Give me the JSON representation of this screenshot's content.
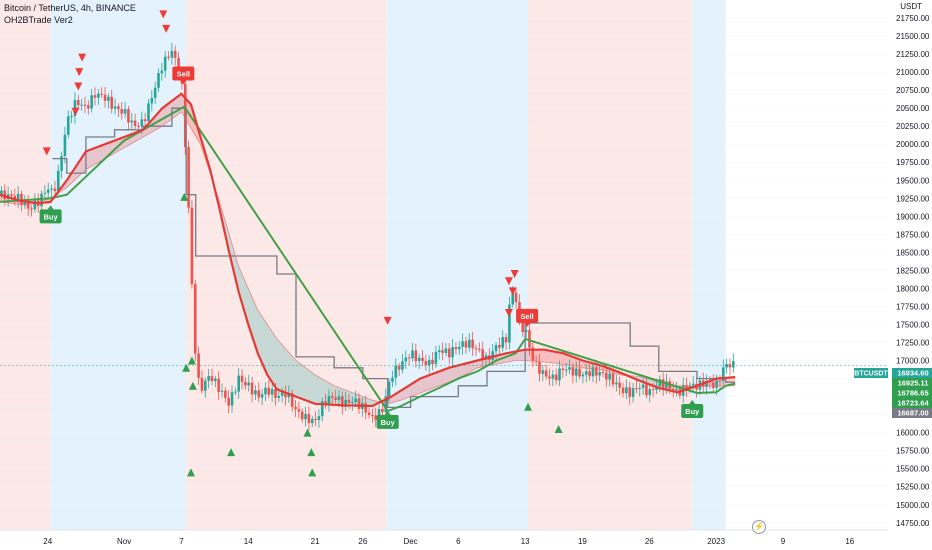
{
  "header": {
    "symbol_line": "Bitcoin / TetherUS, 4h, BINANCE",
    "indicator_line": "OH2BTrade Ver2"
  },
  "axis": {
    "unit": "USDT"
  },
  "icons": {
    "bottom_right": "lightning-icon"
  },
  "colors": {
    "bull_zone": "#e3f2fd",
    "bear_zone": "#fde8e8",
    "up_candle": "#26a69a",
    "down_candle": "#ef5350",
    "buy_label": "#2e9e4f",
    "sell_label": "#ef3b36",
    "up_arrow": "#2e9e4f",
    "down_arrow": "#ef3b36",
    "step_line": "#787b86",
    "fast_ma": "#e53935",
    "slow_ma_green": "#43a047"
  },
  "price_tags": [
    {
      "label": "BTCUSDT",
      "value": "16934.60",
      "color": "#26a69a"
    },
    {
      "label": "",
      "value": "16925.11",
      "color": "#2e9e4f"
    },
    {
      "label": "",
      "value": "16786.65",
      "color": "#2e9e4f"
    },
    {
      "label": "",
      "value": "16723.64",
      "color": "#2e9e4f"
    },
    {
      "label": "",
      "value": "16687.00",
      "color": "#787b86"
    }
  ],
  "chart_data": {
    "type": "candlestick",
    "y_ticks": [
      14750,
      15000,
      15250,
      15500,
      15750,
      16000,
      16250,
      16500,
      16750,
      17000,
      17250,
      17500,
      17750,
      18000,
      18250,
      18500,
      18750,
      19000,
      19250,
      19500,
      19750,
      20000,
      20250,
      20500,
      20750,
      21000,
      21250,
      21500,
      21750
    ],
    "ylim": [
      14650,
      22000
    ],
    "x_ticks": [
      {
        "label": "24",
        "x": 24
      },
      {
        "label": "Nov",
        "x": 32
      },
      {
        "label": "7",
        "x": 38
      },
      {
        "label": "14",
        "x": 45
      },
      {
        "label": "21",
        "x": 52
      },
      {
        "label": "26",
        "x": 57
      },
      {
        "label": "Dec",
        "x": 62
      },
      {
        "label": "6",
        "x": 67
      },
      {
        "label": "13",
        "x": 74
      },
      {
        "label": "19",
        "x": 80
      },
      {
        "label": "26",
        "x": 87
      },
      {
        "label": "2023",
        "x": 94
      },
      {
        "label": "9",
        "x": 101
      },
      {
        "label": "16",
        "x": 108
      }
    ],
    "xlim": [
      19,
      112
    ],
    "zones": [
      {
        "from": 19,
        "to": 24.3,
        "kind": "bear"
      },
      {
        "from": 24.3,
        "to": 38.5,
        "kind": "bull"
      },
      {
        "from": 38.5,
        "to": 59.5,
        "kind": "bear"
      },
      {
        "from": 59.5,
        "to": 74.3,
        "kind": "bull"
      },
      {
        "from": 74.3,
        "to": 91.5,
        "kind": "bear"
      },
      {
        "from": 91.5,
        "to": 95,
        "kind": "bull"
      }
    ],
    "signals": [
      {
        "type": "Buy",
        "x": 24.3,
        "price": 19180
      },
      {
        "type": "Sell",
        "x": 38.2,
        "price": 20800
      },
      {
        "type": "Buy",
        "x": 59.6,
        "price": 16330
      },
      {
        "type": "Sell",
        "x": 74.2,
        "price": 17440
      },
      {
        "type": "Buy",
        "x": 91.5,
        "price": 16480
      }
    ],
    "up_arrows": [
      {
        "x": 38.3,
        "price": 19270
      },
      {
        "x": 39.1,
        "price": 17000
      },
      {
        "x": 38.5,
        "price": 16900
      },
      {
        "x": 39.2,
        "price": 16650
      },
      {
        "x": 39.0,
        "price": 15450
      },
      {
        "x": 43.2,
        "price": 15730
      },
      {
        "x": 51.2,
        "price": 16000
      },
      {
        "x": 51.6,
        "price": 15730
      },
      {
        "x": 51.7,
        "price": 15450
      },
      {
        "x": 74.3,
        "price": 16360
      },
      {
        "x": 77.5,
        "price": 16050
      }
    ],
    "down_arrows": [
      {
        "x": 23.9,
        "price": 19900
      },
      {
        "x": 27.2,
        "price": 20800
      },
      {
        "x": 27.3,
        "price": 21000
      },
      {
        "x": 27.6,
        "price": 21200
      },
      {
        "x": 26.9,
        "price": 20450
      },
      {
        "x": 36.4,
        "price": 21600
      },
      {
        "x": 36.1,
        "price": 21800
      },
      {
        "x": 59.6,
        "price": 17550
      },
      {
        "x": 72.3,
        "price": 18100
      },
      {
        "x": 72.7,
        "price": 17960
      },
      {
        "x": 72.9,
        "price": 18200
      },
      {
        "x": 72.3,
        "price": 17660
      }
    ],
    "close_series": [
      [
        19,
        19300
      ],
      [
        20,
        19280
      ],
      [
        21,
        19250
      ],
      [
        22,
        19100
      ],
      [
        23,
        19200
      ],
      [
        24,
        19400
      ],
      [
        24.5,
        19320
      ],
      [
        25,
        19500
      ],
      [
        26,
        20300
      ],
      [
        27,
        20600
      ],
      [
        28,
        20500
      ],
      [
        29,
        20700
      ],
      [
        30,
        20650
      ],
      [
        31,
        20500
      ],
      [
        32,
        20450
      ],
      [
        33,
        20250
      ],
      [
        34,
        20300
      ],
      [
        35,
        20700
      ],
      [
        36,
        21100
      ],
      [
        37,
        21300
      ],
      [
        37.5,
        21100
      ],
      [
        38,
        20900
      ],
      [
        38.3,
        20200
      ],
      [
        38.6,
        19600
      ],
      [
        39,
        18300
      ],
      [
        39.3,
        17500
      ],
      [
        39.6,
        16800
      ],
      [
        40,
        16600
      ],
      [
        41,
        16800
      ],
      [
        42,
        16600
      ],
      [
        43,
        16400
      ],
      [
        44,
        16750
      ],
      [
        45,
        16650
      ],
      [
        46,
        16500
      ],
      [
        47,
        16600
      ],
      [
        48,
        16500
      ],
      [
        49,
        16550
      ],
      [
        50,
        16300
      ],
      [
        51,
        16200
      ],
      [
        52,
        16150
      ],
      [
        53,
        16450
      ],
      [
        54,
        16500
      ],
      [
        55,
        16400
      ],
      [
        56,
        16450
      ],
      [
        57,
        16350
      ],
      [
        58,
        16200
      ],
      [
        59,
        16300
      ],
      [
        60,
        16800
      ],
      [
        61,
        16950
      ],
      [
        62,
        17100
      ],
      [
        63,
        17000
      ],
      [
        64,
        16950
      ],
      [
        65,
        17150
      ],
      [
        66,
        17100
      ],
      [
        67,
        17200
      ],
      [
        68,
        17250
      ],
      [
        69,
        17150
      ],
      [
        70,
        17000
      ],
      [
        71,
        17200
      ],
      [
        72,
        17300
      ],
      [
        72.5,
        17950
      ],
      [
        73,
        17900
      ],
      [
        73.5,
        17450
      ],
      [
        74,
        17450
      ],
      [
        74.5,
        17150
      ],
      [
        75,
        16950
      ],
      [
        76,
        16800
      ],
      [
        77,
        16750
      ],
      [
        78,
        16900
      ],
      [
        79,
        16850
      ],
      [
        80,
        16800
      ],
      [
        81,
        16850
      ],
      [
        82,
        16820
      ],
      [
        83,
        16750
      ],
      [
        84,
        16600
      ],
      [
        85,
        16550
      ],
      [
        86,
        16650
      ],
      [
        87,
        16550
      ],
      [
        88,
        16700
      ],
      [
        89,
        16650
      ],
      [
        90,
        16550
      ],
      [
        91,
        16650
      ],
      [
        92,
        16650
      ],
      [
        93,
        16700
      ],
      [
        94,
        16650
      ],
      [
        95,
        16950
      ],
      [
        96,
        16930
      ]
    ],
    "fast_ma": [
      [
        19,
        19300
      ],
      [
        21,
        19220
      ],
      [
        23,
        19180
      ],
      [
        24.3,
        19200
      ],
      [
        26,
        19500
      ],
      [
        28,
        19900
      ],
      [
        30,
        20000
      ],
      [
        32,
        20100
      ],
      [
        34,
        20200
      ],
      [
        36,
        20500
      ],
      [
        38,
        20700
      ],
      [
        39,
        20550
      ],
      [
        40,
        20100
      ],
      [
        41,
        19650
      ],
      [
        42,
        19100
      ],
      [
        43,
        18500
      ],
      [
        44,
        17950
      ],
      [
        45,
        17500
      ],
      [
        46,
        17100
      ],
      [
        47,
        16800
      ],
      [
        48,
        16600
      ],
      [
        50,
        16500
      ],
      [
        52,
        16400
      ],
      [
        55,
        16380
      ],
      [
        58,
        16370
      ],
      [
        60,
        16500
      ],
      [
        63,
        16750
      ],
      [
        66,
        16900
      ],
      [
        69,
        17000
      ],
      [
        72,
        17100
      ],
      [
        74,
        17150
      ],
      [
        76,
        17150
      ],
      [
        78,
        17100
      ],
      [
        80,
        17000
      ],
      [
        82,
        16930
      ],
      [
        84,
        16830
      ],
      [
        86,
        16720
      ],
      [
        88,
        16620
      ],
      [
        90,
        16560
      ],
      [
        92,
        16650
      ],
      [
        94,
        16750
      ],
      [
        96,
        16770
      ]
    ],
    "slow_ma": [
      [
        19,
        19200
      ],
      [
        22,
        19150
      ],
      [
        24.3,
        19250
      ],
      [
        26,
        19400
      ],
      [
        28,
        19650
      ],
      [
        30,
        19800
      ],
      [
        32,
        19950
      ],
      [
        34,
        20100
      ],
      [
        36,
        20250
      ],
      [
        38,
        20450
      ],
      [
        40,
        20000
      ],
      [
        42,
        19200
      ],
      [
        44,
        18300
      ],
      [
        46,
        17700
      ],
      [
        48,
        17300
      ],
      [
        50,
        17000
      ],
      [
        52,
        16800
      ],
      [
        54,
        16650
      ],
      [
        56,
        16550
      ],
      [
        58,
        16450
      ],
      [
        59.6,
        16400
      ],
      [
        61,
        16450
      ],
      [
        63,
        16550
      ],
      [
        65,
        16650
      ],
      [
        67,
        16750
      ],
      [
        69,
        16900
      ],
      [
        71,
        16950
      ],
      [
        73,
        17000
      ],
      [
        74,
        17000
      ],
      [
        76,
        16980
      ],
      [
        78,
        16950
      ],
      [
        80,
        16900
      ],
      [
        82,
        16870
      ],
      [
        84,
        16800
      ],
      [
        86,
        16780
      ],
      [
        88,
        16700
      ],
      [
        90,
        16650
      ],
      [
        92,
        16640
      ],
      [
        94,
        16650
      ],
      [
        96,
        16650
      ]
    ],
    "green_line": [
      [
        19,
        19200
      ],
      [
        24.3,
        19250
      ],
      [
        26,
        19300
      ],
      [
        28,
        19550
      ],
      [
        30,
        19800
      ],
      [
        32,
        20050
      ],
      [
        34,
        20200
      ],
      [
        36,
        20350
      ],
      [
        38,
        20500
      ],
      [
        38.3,
        20520
      ],
      [
        59.6,
        16300
      ],
      [
        61,
        16370
      ],
      [
        63,
        16500
      ],
      [
        65,
        16620
      ],
      [
        67,
        16750
      ],
      [
        69,
        16850
      ],
      [
        71,
        17000
      ],
      [
        73,
        17100
      ],
      [
        74,
        17300
      ],
      [
        92,
        16550
      ],
      [
        94,
        16560
      ],
      [
        95,
        16650
      ],
      [
        96,
        16680
      ]
    ],
    "step_line": [
      [
        24.5,
        19800
      ],
      [
        26,
        19800
      ],
      [
        26,
        19600
      ],
      [
        28,
        19600
      ],
      [
        28,
        20100
      ],
      [
        31,
        20100
      ],
      [
        31,
        20200
      ],
      [
        34,
        20200
      ],
      [
        34,
        20250
      ],
      [
        37,
        20250
      ],
      [
        37,
        20500
      ],
      [
        38.5,
        20500
      ],
      [
        38.5,
        19300
      ],
      [
        39.5,
        19300
      ],
      [
        39.5,
        18450
      ],
      [
        44,
        18450
      ],
      [
        44,
        18450
      ],
      [
        48,
        18450
      ],
      [
        48,
        18200
      ],
      [
        50,
        18200
      ],
      [
        50,
        17050
      ],
      [
        54,
        17050
      ],
      [
        54,
        16900
      ],
      [
        57,
        16900
      ],
      [
        57,
        16750
      ],
      [
        59.6,
        16750
      ],
      [
        59.6,
        16350
      ],
      [
        62,
        16350
      ],
      [
        62,
        16500
      ],
      [
        67,
        16500
      ],
      [
        67,
        16650
      ],
      [
        70,
        16650
      ],
      [
        70,
        16850
      ],
      [
        74,
        16850
      ],
      [
        74,
        17520
      ],
      [
        85,
        17520
      ],
      [
        85,
        17200
      ],
      [
        88,
        17200
      ],
      [
        88,
        16850
      ],
      [
        92,
        16850
      ],
      [
        92,
        16750
      ],
      [
        95,
        16750
      ],
      [
        95,
        16700
      ],
      [
        96,
        16700
      ]
    ]
  }
}
